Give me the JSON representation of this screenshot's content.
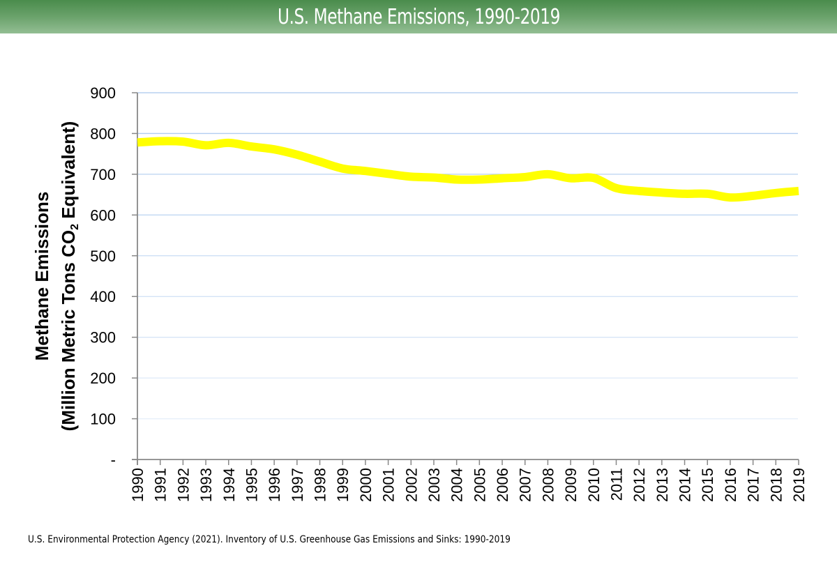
{
  "header": {
    "title": "U.S. Methane Emissions, 1990-2019"
  },
  "source": "U.S. Environmental Protection Agency (2021). Inventory of U.S. Greenhouse Gas Emissions and Sinks: 1990-2019",
  "colors": {
    "header_top": "#4a8c4c",
    "header_bottom": "#93be93",
    "line": "#ffff00",
    "axis": "#888888",
    "gridline": "#a9c8ee"
  },
  "chart_data": {
    "type": "line",
    "title": "U.S. Methane Emissions, 1990-2019",
    "xlabel": "",
    "ylabel_line1": "Methane Emissions",
    "ylabel_line2_prefix": "(Million Metric Tons CO",
    "ylabel_line2_sub": "2",
    "ylabel_line2_suffix": " Equivalent)",
    "ylim": [
      0,
      900
    ],
    "yticks": [
      0,
      100,
      200,
      300,
      400,
      500,
      600,
      700,
      800,
      900
    ],
    "ytick_labels": [
      "-",
      "100",
      "200",
      "300",
      "400",
      "500",
      "600",
      "700",
      "800",
      "900"
    ],
    "grid": true,
    "legend": "none",
    "x": [
      "1990",
      "1991",
      "1992",
      "1993",
      "1994",
      "1995",
      "1996",
      "1997",
      "1998",
      "1999",
      "2000",
      "2001",
      "2002",
      "2003",
      "2004",
      "2005",
      "2006",
      "2007",
      "2008",
      "2009",
      "2010",
      "2011",
      "2012",
      "2013",
      "2014",
      "2015",
      "2016",
      "2017",
      "2018",
      "2019"
    ],
    "series": [
      {
        "name": "Methane Emissions",
        "values": [
          778,
          781,
          780,
          771,
          777,
          768,
          761,
          748,
          731,
          714,
          708,
          701,
          694,
          692,
          687,
          687,
          690,
          693,
          700,
          690,
          691,
          666,
          659,
          655,
          652,
          652,
          643,
          647,
          654,
          659
        ]
      }
    ]
  }
}
